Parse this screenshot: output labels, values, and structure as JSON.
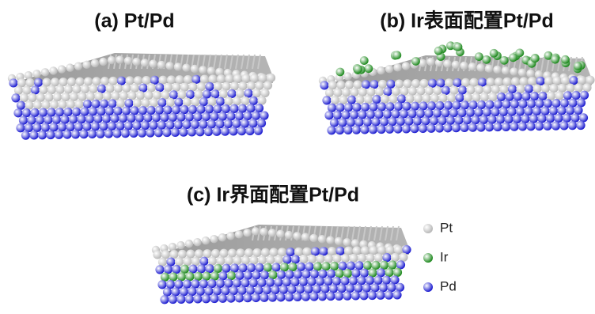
{
  "panels": [
    {
      "label": "(a) Pt/Pd"
    },
    {
      "label": "(b) Ir表面配置Pt/Pd"
    },
    {
      "label": "(c) Ir界面配置Pt/Pd"
    }
  ],
  "legend": [
    {
      "label": "Pt",
      "color": "#b8b8b8"
    },
    {
      "label": "Ir",
      "color": "#1f8a1f"
    },
    {
      "label": "Pd",
      "color": "#1c1cd0"
    }
  ]
}
